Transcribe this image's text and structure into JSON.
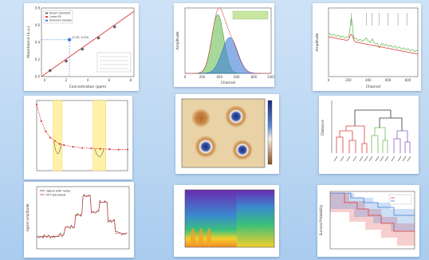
{
  "colors": {
    "background": "#c4dcf4",
    "red": "#e03c3c",
    "green": "#6bbf59",
    "blue": "#3d7fd9",
    "purple": "#8a5cc6",
    "orange": "#f2b53a",
    "brown": "#7a3b2e"
  },
  "chart_data": [
    {
      "type": "scatter",
      "title": "",
      "xlabel": "Concentration (ppm)",
      "ylabel": "Absorbance (a.u.)",
      "legend": [
        "Known Standard",
        "Linear Fit",
        "Unknown Sample"
      ],
      "legend_position": "top-left",
      "x_ticks": [
        "0",
        "2",
        "4",
        "6",
        "8"
      ],
      "y_ticks": [
        "0.0",
        "0.2",
        "0.4",
        "0.6",
        "0.8"
      ],
      "xlim": [
        -0.3,
        8.3
      ],
      "ylim": [
        0,
        0.8
      ],
      "series": [
        {
          "name": "Known Standard",
          "x": [
            0.5,
            2,
            3.5,
            5,
            6.5
          ],
          "y": [
            0.07,
            0.18,
            0.32,
            0.45,
            0.58
          ]
        },
        {
          "name": "Linear Fit",
          "x": [
            -0.3,
            8.3
          ],
          "y": [
            0.0,
            0.76
          ]
        },
        {
          "name": "Unknown Sample",
          "x": [
            2.3
          ],
          "y": [
            0.43
          ]
        }
      ],
      "annotations": [
        "(2.33, 0.43)"
      ]
    },
    {
      "type": "area",
      "title": "",
      "xlabel": "Channel",
      "ylabel": "Amplitude",
      "legend_position": "top-right",
      "x_ticks": [
        "0",
        "200",
        "400",
        "600",
        "800",
        "1000"
      ],
      "xlim": [
        0,
        1000
      ],
      "ylim": [
        0,
        1
      ],
      "peaks": [
        {
          "center": 380,
          "width": 70,
          "height": 0.9
        },
        {
          "center": 520,
          "width": 90,
          "height": 0.55
        }
      ]
    },
    {
      "type": "line",
      "title": "",
      "xlabel": "Channel",
      "ylabel": "Amplitude",
      "xlim": [
        0,
        900
      ],
      "ylim": [
        0,
        1
      ],
      "x_ticks": [
        "0",
        "200",
        "400",
        "600",
        "800"
      ],
      "peak_positions": [
        230,
        380,
        440,
        510,
        600,
        700,
        790
      ]
    },
    {
      "type": "line",
      "title": "",
      "xlabel": "",
      "ylabel": "",
      "xlim": [
        0,
        100
      ],
      "ylim": [
        -0.5,
        1.2
      ],
      "x": [
        0,
        5,
        10,
        15,
        20,
        25,
        30,
        40,
        50,
        60,
        70,
        80,
        90,
        100
      ],
      "y": [
        1.1,
        0.7,
        0.45,
        0.3,
        0.22,
        0.15,
        0.12,
        0.08,
        0.05,
        0.04,
        0.03,
        0.02,
        0.01,
        0.01
      ],
      "highlight_ranges": [
        [
          18,
          28
        ],
        [
          62,
          76
        ]
      ]
    },
    {
      "type": "heatmap",
      "title": "",
      "xlabel": "",
      "ylabel": "",
      "colormap": "two-tone"
    },
    {
      "type": "bar",
      "title": "",
      "subtype": "dendrogram",
      "xlabel": "",
      "ylabel": "Distance"
    },
    {
      "type": "line",
      "title": "",
      "xlabel": "",
      "ylabel": "signal amplitude",
      "legend": [
        "signal with noise",
        "FFT Denoised"
      ],
      "legend_position": "top-left",
      "x": [
        0,
        40,
        60,
        90,
        120,
        150,
        180,
        220
      ],
      "y": [
        0.2,
        0.2,
        0.5,
        0.9,
        0.5,
        0.7,
        0.3,
        0.2
      ]
    },
    {
      "type": "heatmap",
      "title": "",
      "subtype": "spectrogram",
      "xlabel": "",
      "ylabel": ""
    },
    {
      "type": "line",
      "title": "",
      "subtype": "survival",
      "xlabel": "",
      "ylabel": "Survival Probability"
    }
  ]
}
